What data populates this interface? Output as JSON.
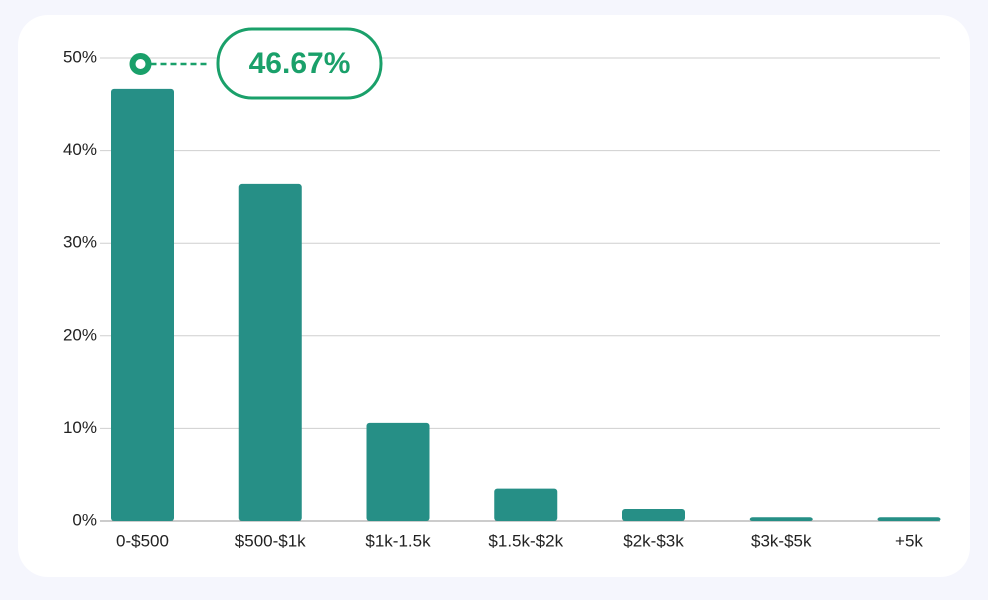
{
  "chart_data": {
    "type": "bar",
    "categories": [
      "0-$500",
      "$500-$1k",
      "$1k-1.5k",
      "$1.5k-$2k",
      "$2k-$3k",
      "$3k-$5k",
      "+5k"
    ],
    "values": [
      46.67,
      36.4,
      10.6,
      3.5,
      1.3,
      0.4,
      0.4
    ],
    "value_labels": [
      "46.67%",
      null,
      null,
      null,
      null,
      null,
      null
    ],
    "color": "#268f86",
    "ylim": [
      0,
      50
    ],
    "yticks": [
      {
        "value": 0,
        "label": "0%"
      },
      {
        "value": 10,
        "label": "10%"
      },
      {
        "value": 20,
        "label": "20%"
      },
      {
        "value": 30,
        "label": "30%"
      },
      {
        "value": 40,
        "label": "40%"
      },
      {
        "value": 50,
        "label": "50%"
      }
    ],
    "grid": true
  }
}
